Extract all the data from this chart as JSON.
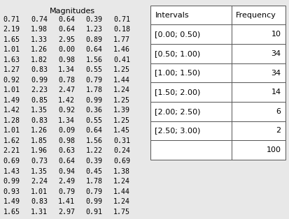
{
  "magnitudes_title": "Magnitudes",
  "magnitudes": [
    [
      0.71,
      0.74,
      0.64,
      0.39,
      0.71
    ],
    [
      2.19,
      1.98,
      0.64,
      1.23,
      0.18
    ],
    [
      1.65,
      1.33,
      2.95,
      0.89,
      1.77
    ],
    [
      1.01,
      1.26,
      0.0,
      0.64,
      1.46
    ],
    [
      1.63,
      1.82,
      0.98,
      1.56,
      0.41
    ],
    [
      1.27,
      0.83,
      1.34,
      0.55,
      1.25
    ],
    [
      0.92,
      0.99,
      0.78,
      0.79,
      1.44
    ],
    [
      1.01,
      2.23,
      2.47,
      1.78,
      1.24
    ],
    [
      1.49,
      0.85,
      1.42,
      0.99,
      1.25
    ],
    [
      1.42,
      1.35,
      0.92,
      0.36,
      1.39
    ],
    [
      1.28,
      0.83,
      1.34,
      0.55,
      1.25
    ],
    [
      1.01,
      1.26,
      0.09,
      0.64,
      1.45
    ],
    [
      1.62,
      1.85,
      0.98,
      1.56,
      0.31
    ],
    [
      2.21,
      1.96,
      0.63,
      1.22,
      0.24
    ],
    [
      0.69,
      0.73,
      0.64,
      0.39,
      0.69
    ],
    [
      1.43,
      1.35,
      0.94,
      0.45,
      1.38
    ],
    [
      0.99,
      2.24,
      2.49,
      1.78,
      1.24
    ],
    [
      0.93,
      1.01,
      0.79,
      0.79,
      1.44
    ],
    [
      1.49,
      0.83,
      1.41,
      0.99,
      1.24
    ],
    [
      1.65,
      1.31,
      2.97,
      0.91,
      1.75
    ]
  ],
  "freq_intervals": [
    "[0.00; 0.50)",
    "[0.50; 1.00)",
    "[1.00; 1.50)",
    "[1.50; 2.00)",
    "[2.00; 2.50)",
    "[2.50; 3.00)"
  ],
  "freq_values": [
    10,
    34,
    34,
    14,
    6,
    2
  ],
  "freq_total": 100,
  "col_header_intervals": "Intervals",
  "col_header_frequency": "Frequency",
  "bg_color": "#e8e8e8",
  "font_size_mag": 7.2,
  "font_size_freq": 8.0,
  "font_size_title": 8.0
}
